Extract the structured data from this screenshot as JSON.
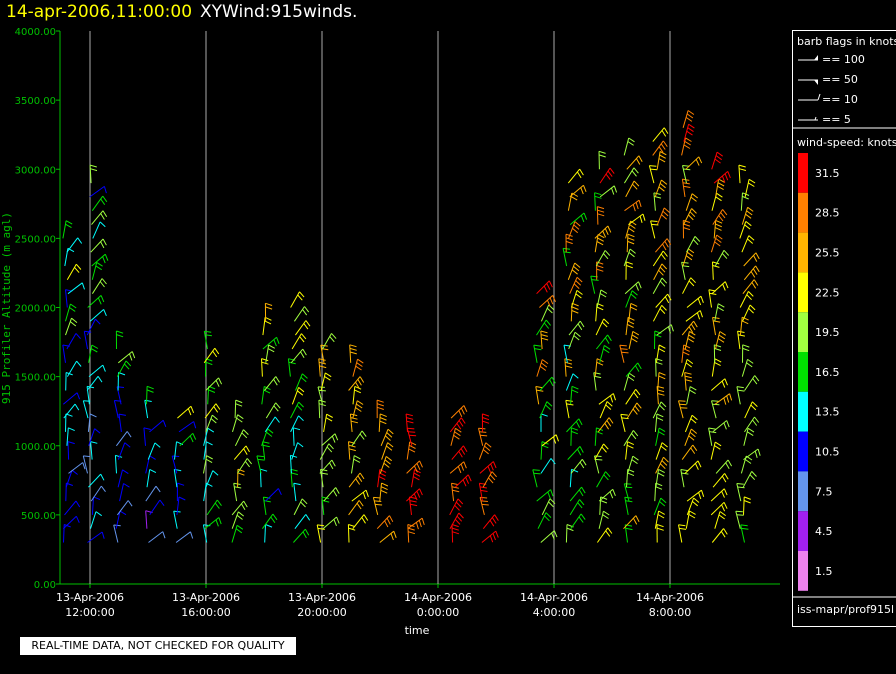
{
  "header": {
    "datetime": "14-apr-2006,11:00:00",
    "title": "XYWind:915winds."
  },
  "footer_note": "REAL-TIME DATA, NOT CHECKED FOR QUALITY",
  "source_label": "iss-mapr/prof915l",
  "legend": {
    "barb_title": "barb flags in knots",
    "barb_items": [
      "== 100",
      "== 50",
      "== 10",
      "== 5"
    ],
    "speed_title": "wind-speed: knots",
    "speed_items": [
      {
        "label": "31.5",
        "color": "#ff0000"
      },
      {
        "label": "28.5",
        "color": "#ff8000"
      },
      {
        "label": "25.5",
        "color": "#ffb400"
      },
      {
        "label": "22.5",
        "color": "#ffff00"
      },
      {
        "label": "19.5",
        "color": "#a0ff40"
      },
      {
        "label": "16.5",
        "color": "#00e000"
      },
      {
        "label": "13.5",
        "color": "#00ffff"
      },
      {
        "label": "10.5",
        "color": "#0000ff"
      },
      {
        "label": "7.5",
        "color": "#6495ed"
      },
      {
        "label": "4.5",
        "color": "#a020f0"
      },
      {
        "label": "1.5",
        "color": "#ee82ee"
      }
    ]
  },
  "chart_data": {
    "type": "scatter",
    "xlabel": "time",
    "ylabel": "915 Profiler Altitude (m agl)",
    "ylim": [
      0,
      4000
    ],
    "y_ticks": [
      "4000.00",
      "3500.00",
      "3000.00",
      "2500.00",
      "2000.00",
      "1500.00",
      "1000.00",
      "500.00",
      "0.00"
    ],
    "x_ticks": [
      {
        "date": "13-Apr-2006",
        "time": "12:00:00"
      },
      {
        "date": "13-Apr-2006",
        "time": "16:00:00"
      },
      {
        "date": "13-Apr-2006",
        "time": "20:00:00"
      },
      {
        "date": "14-Apr-2006",
        "time": "0:00:00"
      },
      {
        "date": "14-Apr-2006",
        "time": "4:00:00"
      },
      {
        "date": "14-Apr-2006",
        "time": "8:00:00"
      }
    ],
    "grid_vertical": true,
    "note": "wind barbs colored by wind speed (knots)",
    "profiles": [
      {
        "time": "11:10",
        "alt_range": [
          300,
          2550
        ],
        "speed_range": [
          5,
          22
        ]
      },
      {
        "time": "12:00",
        "alt_range": [
          300,
          2900
        ],
        "speed_range": [
          3,
          26
        ]
      },
      {
        "time": "13:00",
        "alt_range": [
          300,
          1700
        ],
        "speed_range": [
          3,
          20
        ]
      },
      {
        "time": "14:00",
        "alt_range": [
          300,
          1300
        ],
        "speed_range": [
          2,
          17
        ]
      },
      {
        "time": "15:00",
        "alt_range": [
          300,
          1200
        ],
        "speed_range": [
          5,
          22
        ]
      },
      {
        "time": "16:00",
        "alt_range": [
          300,
          1700
        ],
        "speed_range": [
          10,
          26
        ]
      },
      {
        "time": "17:00",
        "alt_range": [
          300,
          1250
        ],
        "speed_range": [
          12,
          28
        ]
      },
      {
        "time": "18:00",
        "alt_range": [
          300,
          1900
        ],
        "speed_range": [
          10,
          24
        ]
      },
      {
        "time": "19:00",
        "alt_range": [
          300,
          2000
        ],
        "speed_range": [
          10,
          25
        ]
      },
      {
        "time": "20:00",
        "alt_range": [
          300,
          1750
        ],
        "speed_range": [
          15,
          27
        ]
      },
      {
        "time": "21:00",
        "alt_range": [
          300,
          1600
        ],
        "speed_range": [
          18,
          29
        ]
      },
      {
        "time": "22:00",
        "alt_range": [
          300,
          1200
        ],
        "speed_range": [
          22,
          32
        ]
      },
      {
        "time": "23:00",
        "alt_range": [
          300,
          1150
        ],
        "speed_range": [
          26,
          33
        ]
      },
      {
        "time": "00:30",
        "alt_range": [
          300,
          1200
        ],
        "speed_range": [
          28,
          33
        ]
      },
      {
        "time": "01:30",
        "alt_range": [
          300,
          1100
        ],
        "speed_range": [
          28,
          33
        ]
      },
      {
        "time": "03:30",
        "alt_range": [
          300,
          2100
        ],
        "speed_range": [
          6,
          32
        ]
      },
      {
        "time": "04:30",
        "alt_range": [
          300,
          2900
        ],
        "speed_range": [
          8,
          33
        ]
      },
      {
        "time": "05:30",
        "alt_range": [
          300,
          3000
        ],
        "speed_range": [
          10,
          33
        ]
      },
      {
        "time": "06:30",
        "alt_range": [
          300,
          3100
        ],
        "speed_range": [
          12,
          33
        ]
      },
      {
        "time": "07:30",
        "alt_range": [
          300,
          3250
        ],
        "speed_range": [
          12,
          33
        ]
      },
      {
        "time": "08:30",
        "alt_range": [
          300,
          3350
        ],
        "speed_range": [
          14,
          33
        ]
      },
      {
        "time": "09:30",
        "alt_range": [
          300,
          3000
        ],
        "speed_range": [
          15,
          30
        ]
      },
      {
        "time": "10:30",
        "alt_range": [
          300,
          2900
        ],
        "speed_range": [
          17,
          28
        ]
      }
    ]
  }
}
